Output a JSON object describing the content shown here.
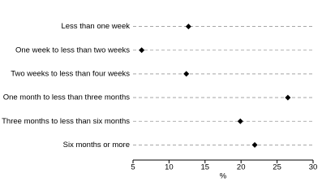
{
  "chart_data": {
    "type": "dot",
    "categories": [
      "Less than one week",
      "One week to less than two weeks",
      "Two weeks to less than four weeks",
      "One month to less than three months",
      "Three months to less than six months",
      "Six months or more"
    ],
    "values": [
      12.7,
      6.2,
      12.4,
      26.5,
      19.9,
      21.9
    ],
    "color": "#000000",
    "xlabel": "%",
    "xlim": [
      5,
      30
    ],
    "xticks": [
      5,
      10,
      15,
      20,
      25,
      30
    ],
    "grid": true
  }
}
